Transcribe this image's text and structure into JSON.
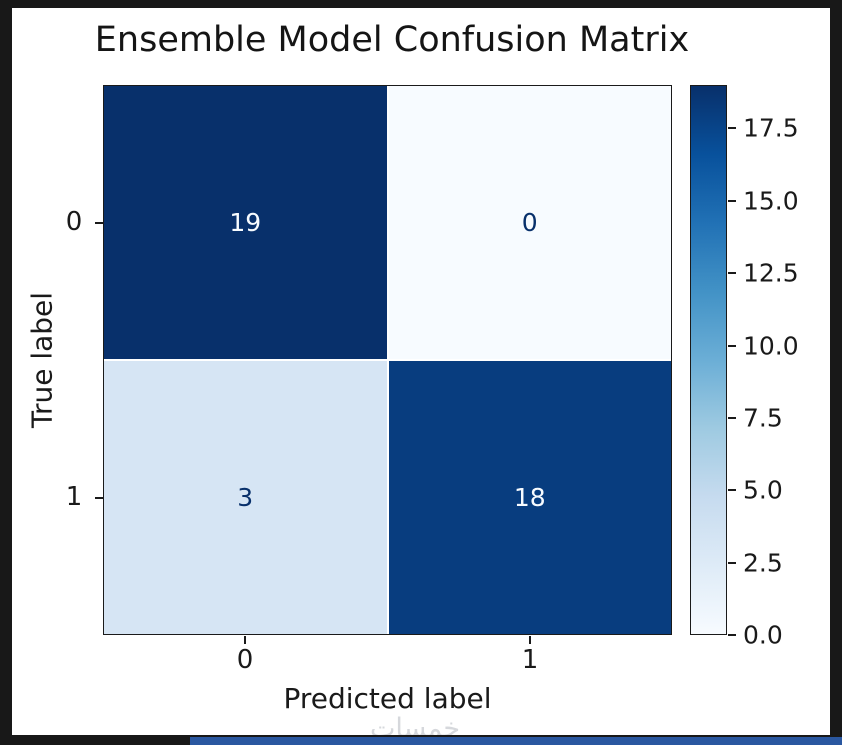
{
  "chart_data": {
    "type": "heatmap",
    "title": "Ensemble Model Confusion Matrix",
    "xlabel": "Predicted label",
    "ylabel": "True label",
    "x_tick_labels": [
      "0",
      "1"
    ],
    "y_tick_labels": [
      "0",
      "1"
    ],
    "matrix": [
      [
        19,
        0
      ],
      [
        3,
        18
      ]
    ],
    "vmin": 0,
    "vmax": 19,
    "colormap": "Blues",
    "colormap_stops": [
      "#f7fbff",
      "#deebf7",
      "#c6dbef",
      "#9ecae1",
      "#6baed6",
      "#4292c6",
      "#2171b5",
      "#08519c",
      "#08306b"
    ],
    "colorbar_tick_labels": [
      "17.5",
      "15.0",
      "12.5",
      "10.0",
      "7.5",
      "5.0",
      "2.5",
      "0.0"
    ],
    "cell_colors": [
      [
        "#08306b",
        "#f7fbff"
      ],
      [
        "#d6e5f4",
        "#083d7f"
      ]
    ],
    "cell_text_colors": [
      [
        "#f7fbff",
        "#08306b"
      ],
      [
        "#08306b",
        "#f7fbff"
      ]
    ],
    "legend_position": "right-colorbar",
    "grid": false
  },
  "watermark": {
    "text": "خمسات",
    "color": "#cfd2d6"
  },
  "frame": {
    "background": "#181818",
    "figure_background": "#ffffff",
    "bottom_strip_color": "#2a57a0"
  }
}
